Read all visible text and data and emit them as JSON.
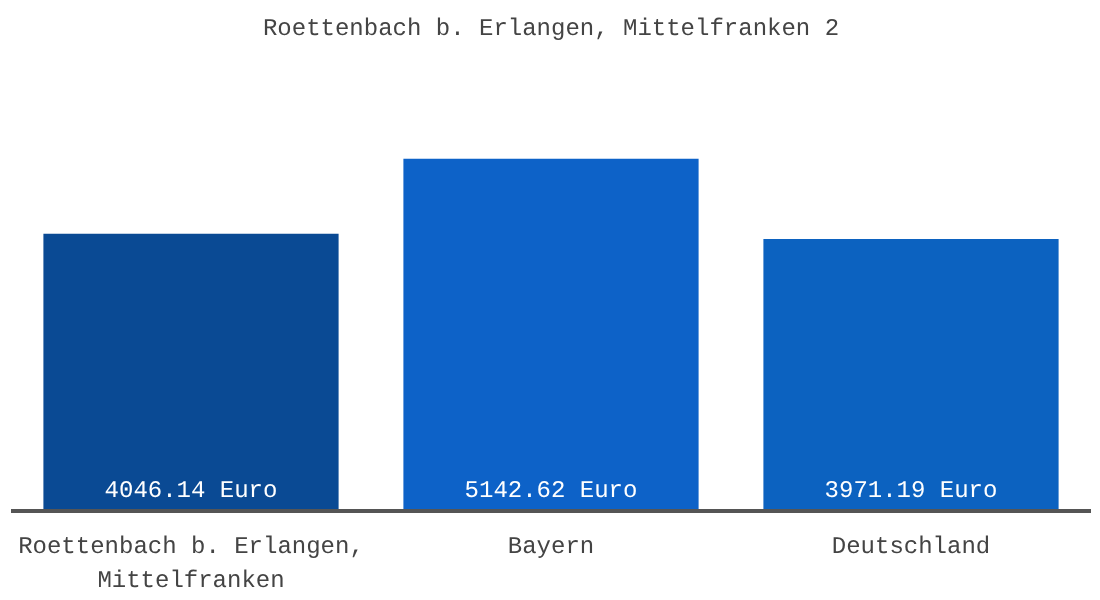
{
  "chart_data": {
    "type": "bar",
    "title": "Roettenbach b. Erlangen, Mittelfranken 2",
    "categories": [
      "Roettenbach b. Erlangen, Mittelfranken",
      "Bayern",
      "Deutschland"
    ],
    "values": [
      4046.14,
      5142.62,
      3971.19
    ],
    "colors": [
      "#0a4a94",
      "#0d62c8",
      "#0c62c0"
    ],
    "value_labels": [
      "4046.14 Euro",
      "5142.62 Euro",
      "3971.19 Euro"
    ],
    "grid": false
  }
}
